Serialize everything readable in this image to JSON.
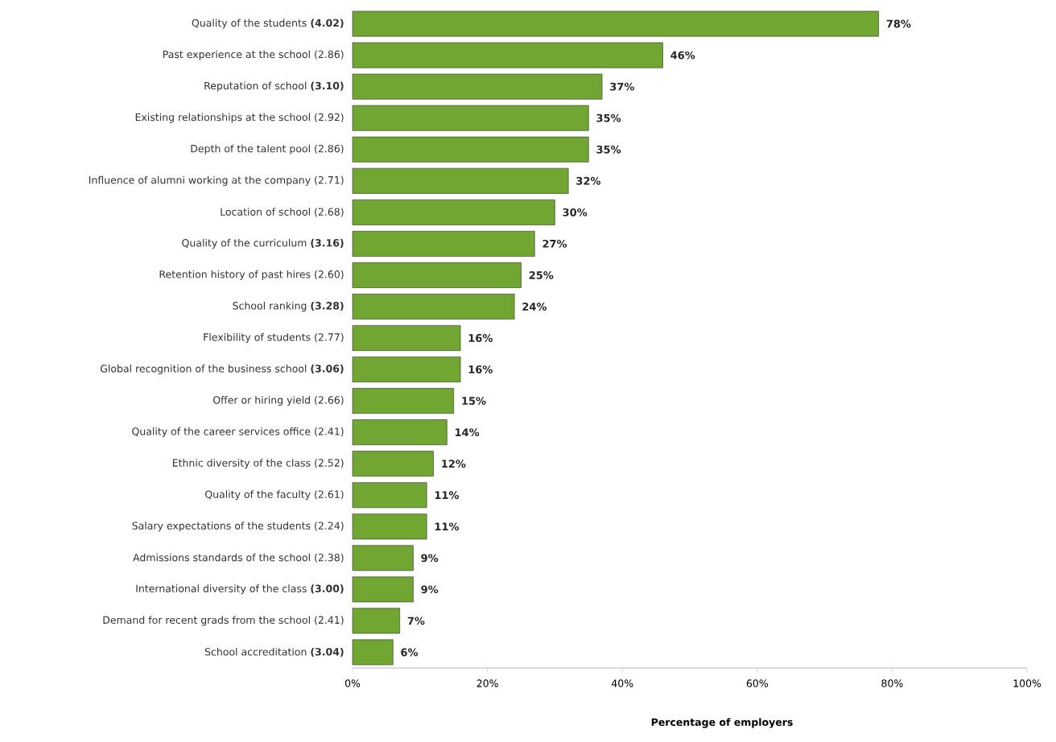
{
  "chart_data": {
    "type": "bar",
    "orientation": "horizontal",
    "xlabel": "**Percentage of employers**",
    "categories": [
      "Quality of the students **(4.02)**",
      "Past experience at the school (2.86)",
      "Reputation of school **(3.10)**",
      "Existing relationships at the school (2.92)",
      "Depth of the talent pool (2.86)",
      "Influence of alumni working at the company (2.71)",
      "Location of school (2.68)",
      "Quality of the curriculum **(3.16)**",
      "Retention history of past hires (2.60)",
      "School ranking **(3.28)**",
      "Flexibility of students (2.77)",
      "Global recognition of the business school **(3.06)**",
      "Offer or hiring yield (2.66)",
      "Quality of the career services office (2.41)",
      "Ethnic diversity of the class (2.52)",
      "Quality of the faculty (2.61)",
      "Salary expectations of the students (2.24)",
      "Admissions standards of the school (2.38)",
      "International diversity of the class **(3.00)**",
      "Demand for recent grads from the school (2.41)",
      "School accreditation **(3.04)**"
    ],
    "values": [
      78,
      46,
      37,
      35,
      35,
      32,
      30,
      27,
      25,
      24,
      16,
      16,
      15,
      14,
      12,
      11,
      11,
      9,
      9,
      7,
      6
    ],
    "value_labels": [
      "**78%**",
      "**46%**",
      "**37%**",
      "**35%**",
      "**35%**",
      "**32%**",
      "**30%**",
      "**27%**",
      "**25%**",
      "**24%**",
      "**16%**",
      "**16%**",
      "**15%**",
      "**14%**",
      "**12%**",
      "**11%**",
      "**11%**",
      "**9%**",
      "**9%**",
      "**7%**",
      "**6%**"
    ],
    "color": "#72a632",
    "xlim": [
      0,
      100
    ],
    "xticks": [
      {
        "value": 0,
        "label": "0%"
      },
      {
        "value": 20,
        "label": "20%"
      },
      {
        "value": 40,
        "label": "40%"
      },
      {
        "value": 60,
        "label": "60%"
      },
      {
        "value": 80,
        "label": "80%"
      },
      {
        "value": 100,
        "label": "100%"
      }
    ]
  }
}
